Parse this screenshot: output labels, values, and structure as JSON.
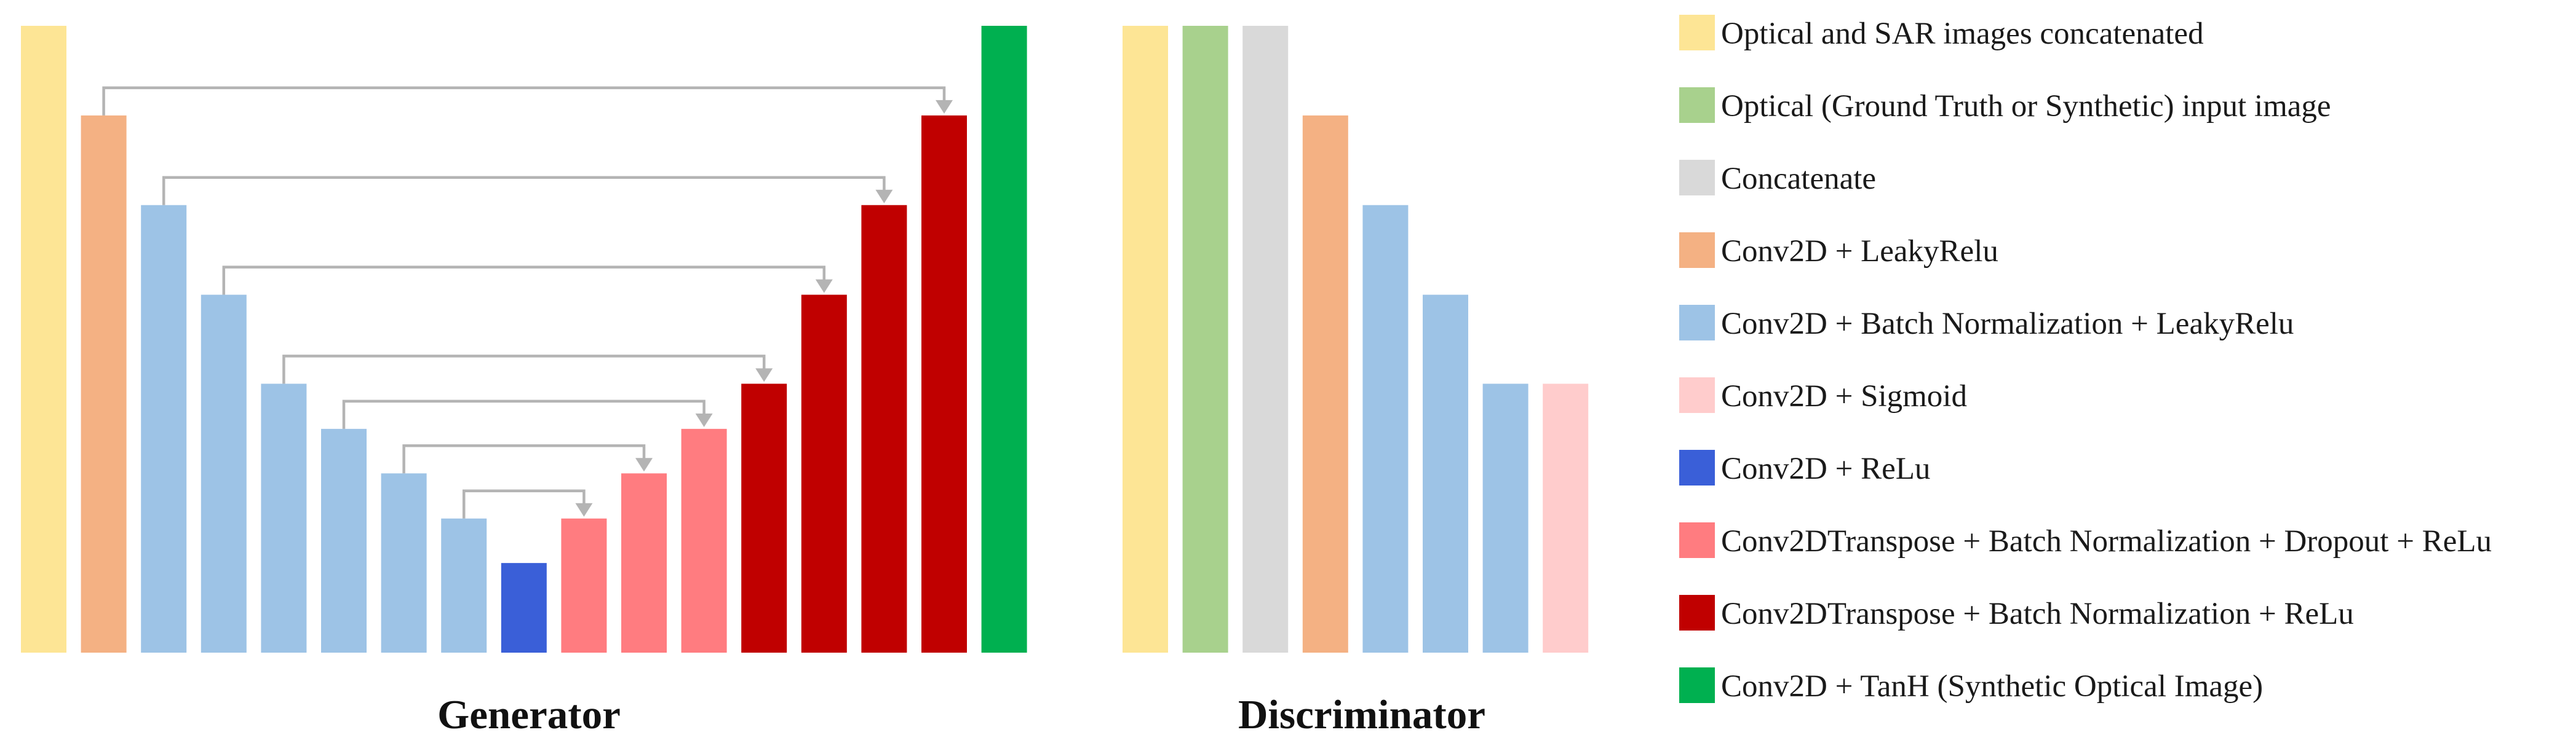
{
  "colors": {
    "concat_input": "#fde595",
    "optical_input": "#a8d18d",
    "concatenate": "#d9d9d9",
    "conv_leakyrelu": "#f4b183",
    "conv_bn_leakyrelu": "#9dc3e6",
    "conv_sigmoid": "#ffcccc",
    "conv_relu": "#3a5fd8",
    "convT_bn_dropout_relu": "#ff7c80",
    "convT_bn_relu": "#c00000",
    "conv_tanh": "#00b050",
    "skip_connection": "#b4b4b4"
  },
  "generator": {
    "title": "Generator",
    "blocks": [
      {
        "type": "concat_input",
        "level": 1.0
      },
      {
        "type": "conv_leakyrelu",
        "level": 0.857
      },
      {
        "type": "conv_bn_leakyrelu",
        "level": 0.714
      },
      {
        "type": "conv_bn_leakyrelu",
        "level": 0.571
      },
      {
        "type": "conv_bn_leakyrelu",
        "level": 0.429
      },
      {
        "type": "conv_bn_leakyrelu",
        "level": 0.357
      },
      {
        "type": "conv_bn_leakyrelu",
        "level": 0.286
      },
      {
        "type": "conv_bn_leakyrelu",
        "level": 0.214
      },
      {
        "type": "conv_relu",
        "level": 0.143
      },
      {
        "type": "convT_bn_dropout_relu",
        "level": 0.214
      },
      {
        "type": "convT_bn_dropout_relu",
        "level": 0.286
      },
      {
        "type": "convT_bn_dropout_relu",
        "level": 0.357
      },
      {
        "type": "convT_bn_relu",
        "level": 0.429
      },
      {
        "type": "convT_bn_relu",
        "level": 0.571
      },
      {
        "type": "convT_bn_relu",
        "level": 0.714
      },
      {
        "type": "convT_bn_relu",
        "level": 0.857
      },
      {
        "type": "conv_tanh",
        "level": 1.0
      }
    ],
    "skip_connections": [
      {
        "from": 1,
        "to": 15
      },
      {
        "from": 2,
        "to": 14
      },
      {
        "from": 3,
        "to": 13
      },
      {
        "from": 4,
        "to": 12
      },
      {
        "from": 5,
        "to": 11
      },
      {
        "from": 6,
        "to": 10
      },
      {
        "from": 7,
        "to": 9
      }
    ]
  },
  "discriminator": {
    "title": "Discriminator",
    "blocks": [
      {
        "type": "concat_input",
        "level": 1.0
      },
      {
        "type": "optical_input",
        "level": 1.0
      },
      {
        "type": "concatenate",
        "level": 1.0
      },
      {
        "type": "conv_leakyrelu",
        "level": 0.857
      },
      {
        "type": "conv_bn_leakyrelu",
        "level": 0.714
      },
      {
        "type": "conv_bn_leakyrelu",
        "level": 0.571
      },
      {
        "type": "conv_bn_leakyrelu",
        "level": 0.429
      },
      {
        "type": "conv_sigmoid",
        "level": 0.429
      }
    ]
  },
  "legend": [
    {
      "type": "concat_input",
      "label": "Optical and SAR images concatenated"
    },
    {
      "type": "optical_input",
      "label": "Optical (Ground Truth or Synthetic) input image"
    },
    {
      "type": "concatenate",
      "label": "Concatenate"
    },
    {
      "type": "conv_leakyrelu",
      "label": "Conv2D + LeakyRelu"
    },
    {
      "type": "conv_bn_leakyrelu",
      "label": "Conv2D + Batch Normalization + LeakyRelu"
    },
    {
      "type": "conv_sigmoid",
      "label": "Conv2D + Sigmoid"
    },
    {
      "type": "conv_relu",
      "label": "Conv2D + ReLu"
    },
    {
      "type": "convT_bn_dropout_relu",
      "label": "Conv2DTranspose + Batch Normalization + Dropout +  ReLu"
    },
    {
      "type": "convT_bn_relu",
      "label": "Conv2DTranspose + Batch Normalization + ReLu"
    },
    {
      "type": "conv_tanh",
      "label": "Conv2D + TanH (Synthetic Optical Image)"
    }
  ]
}
